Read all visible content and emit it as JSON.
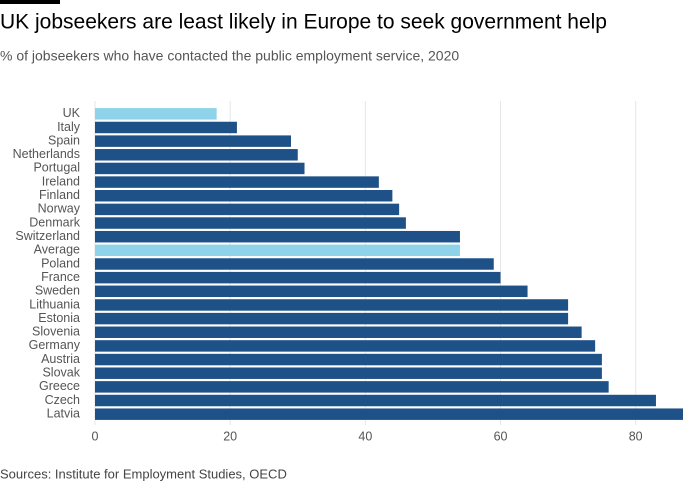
{
  "chart_data": {
    "type": "barh",
    "title": "UK jobseekers are least likely in Europe to seek government help",
    "subtitle": "% of jobseekers who have contacted the public employment service, 2020",
    "source": "Sources: Institute for Employment Studies, OECD",
    "categories": [
      "UK",
      "Italy",
      "Spain",
      "Netherlands",
      "Portugal",
      "Ireland",
      "Finland",
      "Norway",
      "Denmark",
      "Switzerland",
      "Average",
      "Poland",
      "France",
      "Sweden",
      "Lithuania",
      "Estonia",
      "Slovenia",
      "Germany",
      "Austria",
      "Slovak",
      "Greece",
      "Czech",
      "Latvia"
    ],
    "values": [
      18,
      21,
      29,
      30,
      31,
      42,
      44,
      45,
      46,
      54,
      54,
      59,
      60,
      64,
      70,
      70,
      72,
      74,
      75,
      75,
      76,
      83,
      87
    ],
    "colors": [
      "#8fd3ea",
      "#1f5189",
      "#1f5189",
      "#1f5189",
      "#1f5189",
      "#1f5189",
      "#1f5189",
      "#1f5189",
      "#1f5189",
      "#1f5189",
      "#8fd3ea",
      "#1f5189",
      "#1f5189",
      "#1f5189",
      "#1f5189",
      "#1f5189",
      "#1f5189",
      "#1f5189",
      "#1f5189",
      "#1f5189",
      "#1f5189",
      "#1f5189",
      "#1f5189"
    ],
    "xlim": [
      0,
      87
    ],
    "xticks": [
      0,
      20,
      40,
      60,
      80
    ],
    "grid": true
  }
}
